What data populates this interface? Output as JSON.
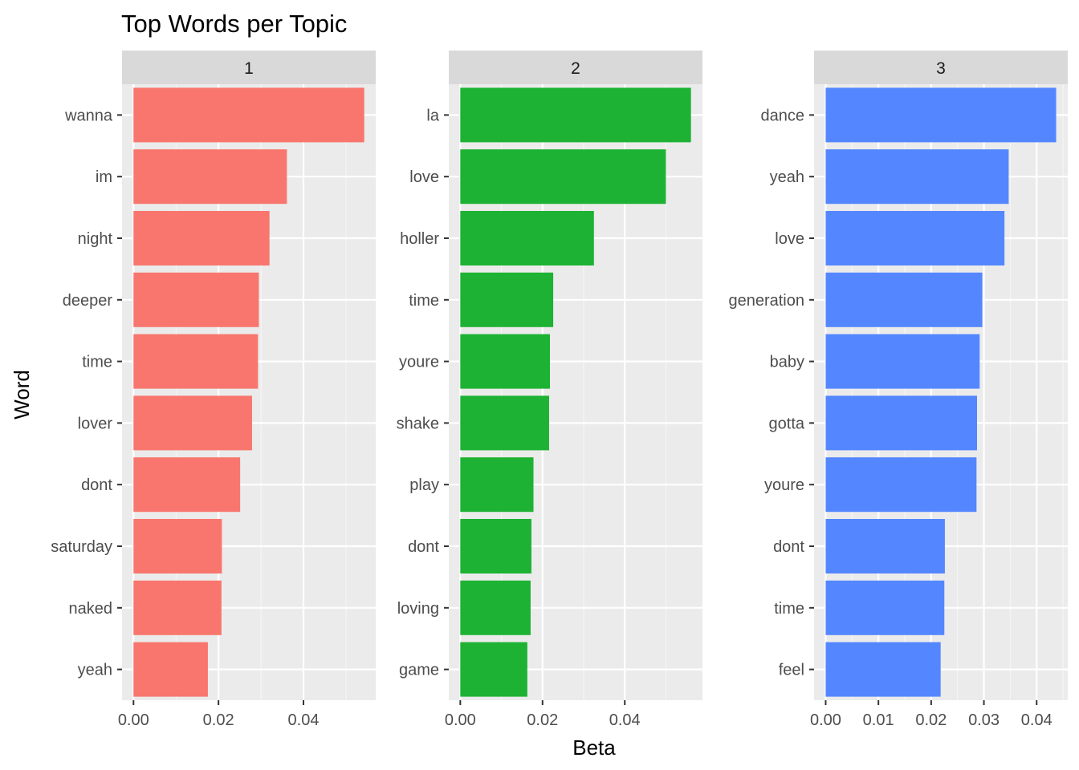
{
  "chart_data": {
    "type": "bar",
    "orientation": "horizontal",
    "title": "Top Words per Topic",
    "xlabel": "Beta",
    "ylabel": "Word",
    "grid": true,
    "legend": "none",
    "panels": [
      {
        "facet": "1",
        "color": "#F8766D",
        "categories": [
          "wanna",
          "im",
          "night",
          "deeper",
          "time",
          "lover",
          "dont",
          "saturday",
          "naked",
          "yeah"
        ],
        "values": [
          0.0543,
          0.0361,
          0.032,
          0.0295,
          0.0293,
          0.0279,
          0.0251,
          0.0208,
          0.0207,
          0.0175
        ],
        "xlim": [
          -0.0027,
          0.057
        ],
        "xticks": [
          "0.00",
          "0.02",
          "0.04"
        ],
        "xtick_values": [
          0,
          0.02,
          0.04
        ]
      },
      {
        "facet": "2",
        "color": "#1DB233",
        "categories": [
          "la",
          "love",
          "holler",
          "time",
          "youre",
          "shake",
          "play",
          "dont",
          "loving",
          "game"
        ],
        "values": [
          0.0561,
          0.05,
          0.0325,
          0.0226,
          0.0218,
          0.0216,
          0.0178,
          0.0173,
          0.0171,
          0.0163
        ],
        "xlim": [
          -0.0028,
          0.0589
        ],
        "xticks": [
          "0.00",
          "0.02",
          "0.04"
        ],
        "xtick_values": [
          0,
          0.02,
          0.04
        ]
      },
      {
        "facet": "3",
        "color": "#5487FF",
        "categories": [
          "dance",
          "yeah",
          "love",
          "generation",
          "baby",
          "gotta",
          "youre",
          "dont",
          "time",
          "feel"
        ],
        "values": [
          0.0437,
          0.0347,
          0.0339,
          0.0297,
          0.0292,
          0.0287,
          0.0286,
          0.0226,
          0.0225,
          0.0218
        ],
        "xlim": [
          -0.0022,
          0.0459
        ],
        "xticks": [
          "0.00",
          "0.01",
          "0.02",
          "0.03",
          "0.04"
        ],
        "xtick_values": [
          0,
          0.01,
          0.02,
          0.03,
          0.04
        ]
      }
    ]
  }
}
